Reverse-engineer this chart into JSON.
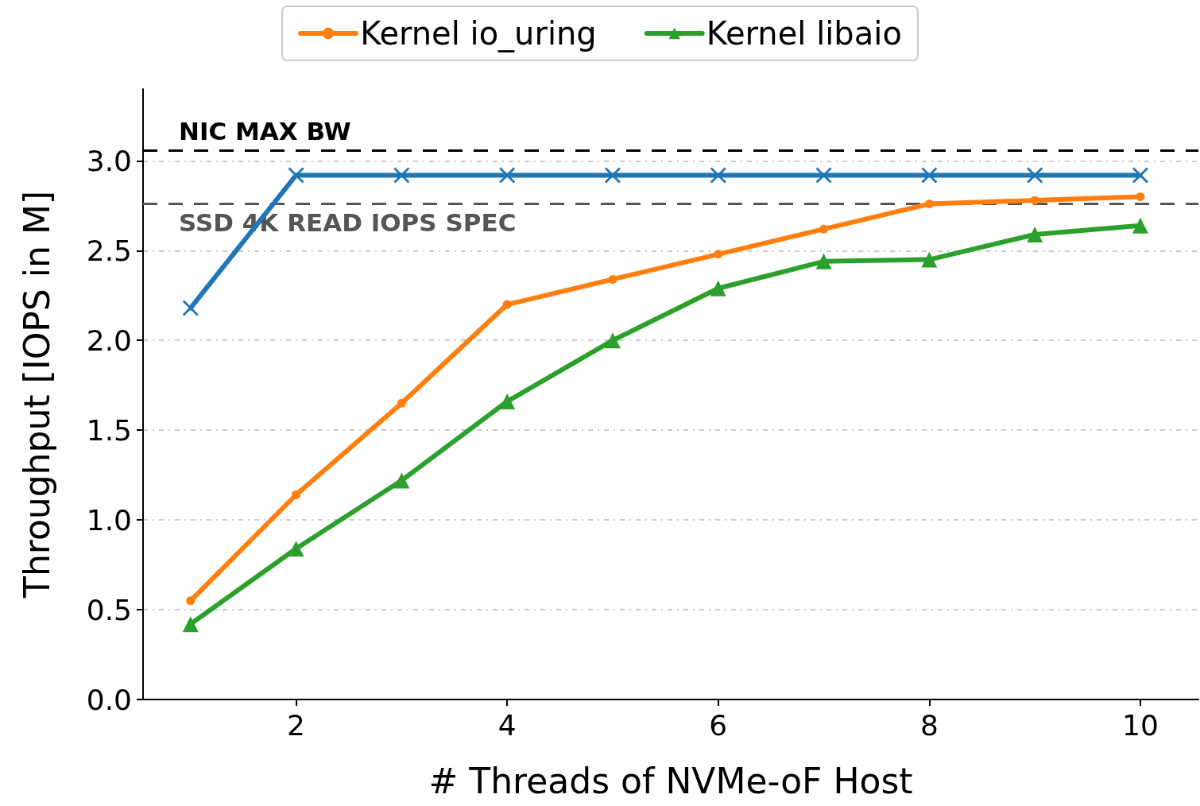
{
  "chart_data": {
    "type": "line",
    "xlabel": "# Threads of NVMe-oF Host",
    "ylabel": "Throughput [IOPS in M]",
    "x": [
      1,
      2,
      3,
      4,
      5,
      6,
      7,
      8,
      9,
      10
    ],
    "series": [
      {
        "color": "#1f77b4",
        "marker": "cross",
        "values": [
          2.18,
          2.92,
          2.92,
          2.92,
          2.92,
          2.92,
          2.92,
          2.92,
          2.92,
          2.92
        ]
      },
      {
        "name": "Kernel io_uring",
        "color": "#ff7f0e",
        "marker": "circle",
        "values": [
          0.55,
          1.14,
          1.65,
          2.2,
          2.34,
          2.48,
          2.62,
          2.76,
          2.78,
          2.8
        ]
      },
      {
        "name": "Kernel libaio",
        "color": "#2ca02c",
        "marker": "triangle",
        "values": [
          0.42,
          0.84,
          1.22,
          1.66,
          2.0,
          2.29,
          2.44,
          2.45,
          2.59,
          2.64
        ]
      }
    ],
    "xlim": [
      0.55,
      10.55
    ],
    "xticks": [
      2,
      4,
      6,
      8,
      10
    ],
    "ylim": [
      0,
      3.4
    ],
    "yticks": [
      {
        "value": 0,
        "label": "0.0"
      },
      {
        "value": 0.5,
        "label": "0.5"
      },
      {
        "value": 1,
        "label": "1.0"
      },
      {
        "value": 1.5,
        "label": "1.5"
      },
      {
        "value": 2,
        "label": "2.0"
      },
      {
        "value": 2.5,
        "label": "2.5"
      },
      {
        "value": 3,
        "label": "3.0"
      }
    ],
    "ref_lines": [
      {
        "axis": "y",
        "value": 3.06,
        "label": "NIC MAX BW",
        "color": "#000000",
        "line_style": "dashed"
      },
      {
        "axis": "y",
        "value": 2.76,
        "label": "SSD 4K READ IOPS SPEC",
        "color": "#555555",
        "line_style": "dashed"
      }
    ],
    "grid": "y",
    "legend": "top",
    "line_style": "solid"
  }
}
